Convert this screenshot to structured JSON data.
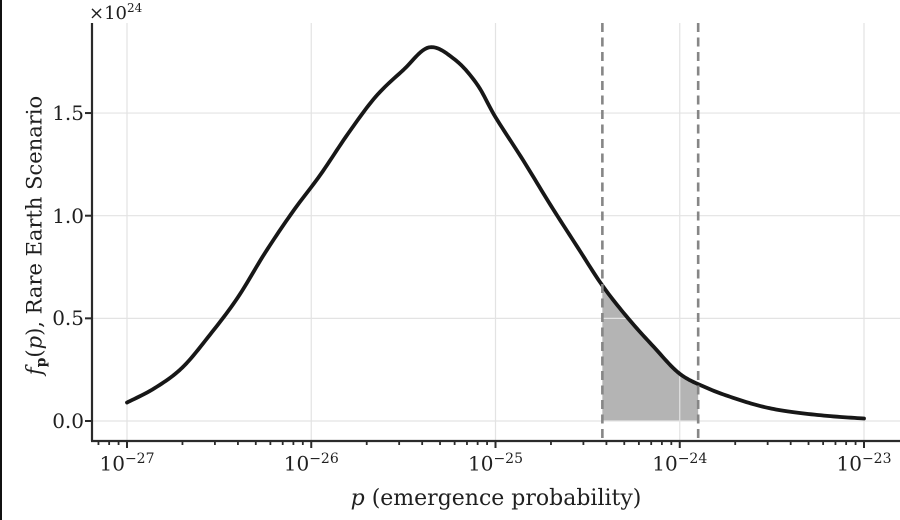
{
  "accent_colors": {
    "curve": "#171717",
    "shading": "#b4b4b4",
    "dashed_line": "#868686",
    "grid": "#e3e3e3",
    "axis": "#2a2a2a",
    "text": "#1f1f1f",
    "left_edge_bar": "#111111"
  },
  "labels": {
    "offset_base": "×10",
    "offset_exp": "24",
    "ylabel_f": "f",
    "ylabel_sub": "p",
    "ylabel_paren_open": "(",
    "ylabel_arg": "p",
    "ylabel_rest": "), Rare Earth Scenario",
    "xlabel_var": "p",
    "xlabel_rest": " (emergence probability)"
  },
  "chart_data": {
    "type": "line",
    "title": "",
    "xlabel": "p (emergence probability)",
    "ylabel": "f_p(p), Rare Earth Scenario",
    "y_unit_multiplier": "1e24",
    "x_scale": "log10",
    "x_range_log10": [
      -27.19,
      -22.805
    ],
    "y_range": [
      -0.097,
      1.939
    ],
    "grid": true,
    "x_ticks": [
      {
        "base": "10",
        "exp": "−27",
        "log10": -27
      },
      {
        "base": "10",
        "exp": "−26",
        "log10": -26
      },
      {
        "base": "10",
        "exp": "−25",
        "log10": -25
      },
      {
        "base": "10",
        "exp": "−24",
        "log10": -24
      },
      {
        "base": "10",
        "exp": "−23",
        "log10": -23
      }
    ],
    "y_ticks": [
      {
        "label": "0.0",
        "value": 0.0
      },
      {
        "label": "0.5",
        "value": 0.5
      },
      {
        "label": "1.0",
        "value": 1.0
      },
      {
        "label": "1.5",
        "value": 1.5
      }
    ],
    "series": [
      {
        "name": "density-curve",
        "peak_value": 1.82,
        "peak_log10p": -25.36,
        "points_log10p_value": [
          [
            -27.0,
            0.09
          ],
          [
            -26.85,
            0.16
          ],
          [
            -26.7,
            0.26
          ],
          [
            -26.55,
            0.42
          ],
          [
            -26.4,
            0.6
          ],
          [
            -26.25,
            0.82
          ],
          [
            -26.1,
            1.02
          ],
          [
            -25.95,
            1.2
          ],
          [
            -25.8,
            1.4
          ],
          [
            -25.65,
            1.58
          ],
          [
            -25.5,
            1.71
          ],
          [
            -25.36,
            1.82
          ],
          [
            -25.22,
            1.76
          ],
          [
            -25.1,
            1.64
          ],
          [
            -25.0,
            1.48
          ],
          [
            -24.85,
            1.27
          ],
          [
            -24.7,
            1.05
          ],
          [
            -24.55,
            0.84
          ],
          [
            -24.42,
            0.66
          ],
          [
            -24.28,
            0.5
          ],
          [
            -24.14,
            0.36
          ],
          [
            -24.0,
            0.23
          ],
          [
            -23.85,
            0.16
          ],
          [
            -23.7,
            0.11
          ],
          [
            -23.55,
            0.07
          ],
          [
            -23.4,
            0.045
          ],
          [
            -23.2,
            0.025
          ],
          [
            -23.0,
            0.012
          ]
        ]
      }
    ],
    "highlight_interval": {
      "from_log10p": -24.42,
      "to_log10p": -23.9,
      "approx_from_p": "4e-25",
      "approx_to_p": "1.2e-24",
      "style": "dashed-vertical-lines-with-gray-fill-under-curve"
    }
  }
}
